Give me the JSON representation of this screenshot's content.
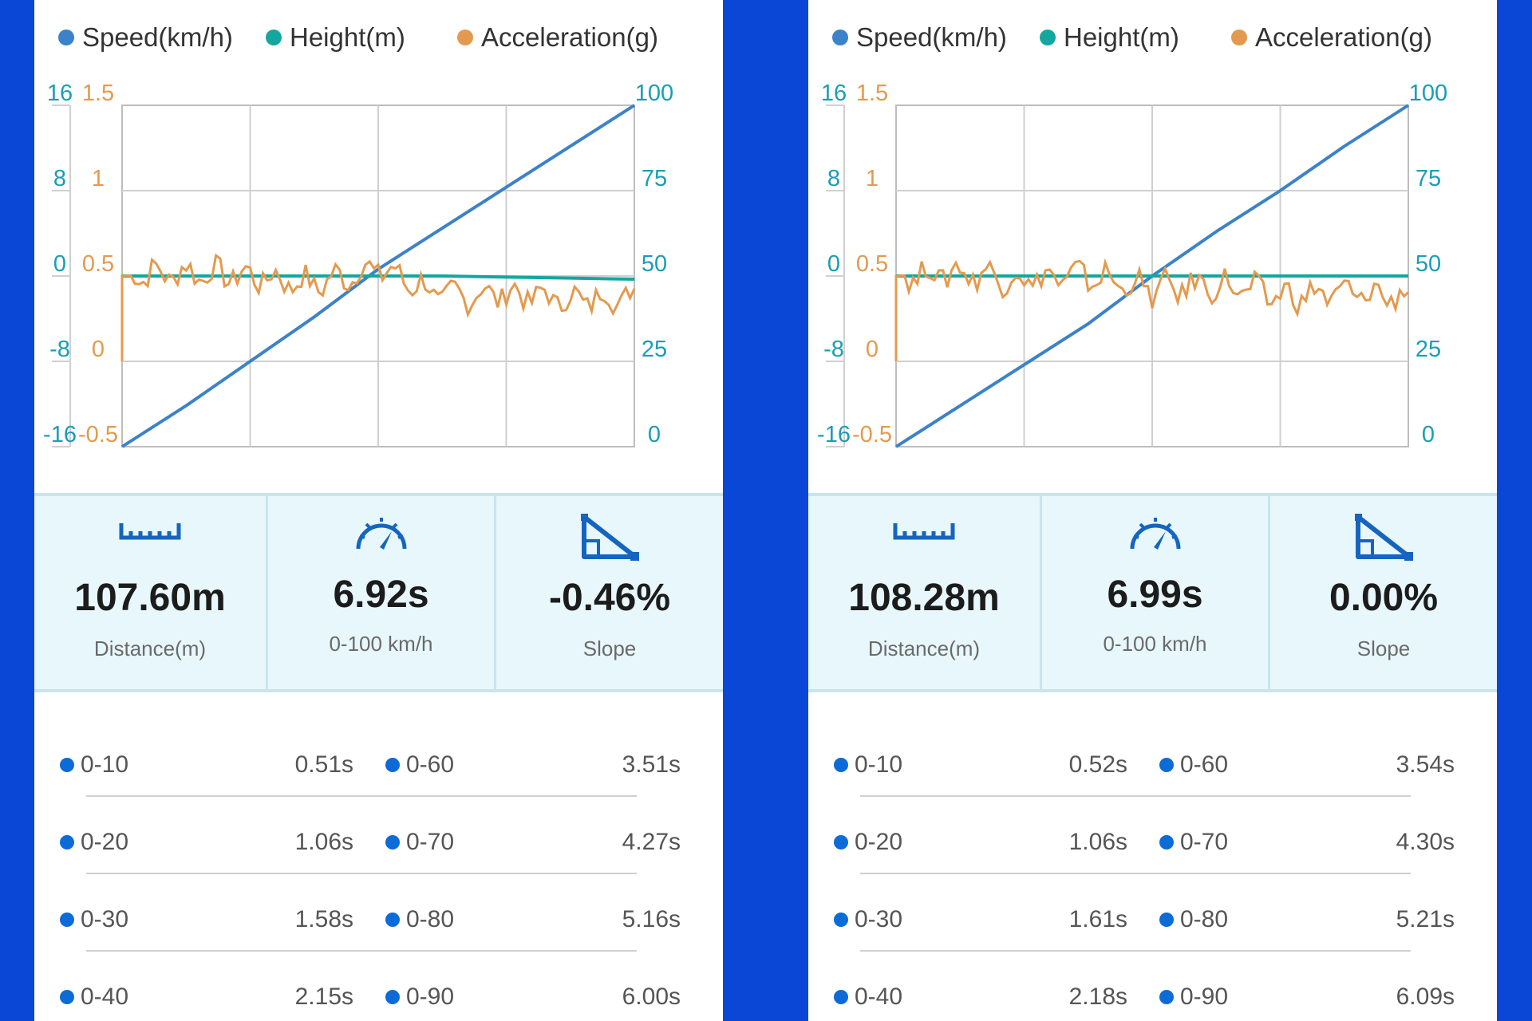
{
  "colors": {
    "speed": "#3c82c8",
    "height": "#14a7a0",
    "accel": "#e49a4e",
    "left_axis": "#1a9db5",
    "right_axis": "#1a9db5",
    "accent": "#0b47d6"
  },
  "panels": [
    {
      "legend": {
        "speed": "Speed(km/h)",
        "height": "Height(m)",
        "accel": "Acceleration(g)"
      },
      "axes": {
        "height_ticks": [
          "16",
          "8",
          "0",
          "-8",
          "-16"
        ],
        "accel_ticks": [
          "1.5",
          "1",
          "0.5",
          "0",
          "-0.5"
        ],
        "speed_ticks": [
          "100",
          "75",
          "50",
          "25",
          "0"
        ]
      },
      "stats": {
        "distance": {
          "value": "107.60m",
          "label": "Distance(m)",
          "icon": "ruler-icon"
        },
        "time": {
          "value": "6.92s",
          "label": "0-100 km/h",
          "icon": "speedometer-icon"
        },
        "slope": {
          "value": "-0.46%",
          "label": "Slope",
          "icon": "slope-icon"
        }
      },
      "times": [
        {
          "l_label": "0-10",
          "l_value": "0.51s",
          "r_label": "0-60",
          "r_value": "3.51s"
        },
        {
          "l_label": "0-20",
          "l_value": "1.06s",
          "r_label": "0-70",
          "r_value": "4.27s"
        },
        {
          "l_label": "0-30",
          "l_value": "1.58s",
          "r_label": "0-80",
          "r_value": "5.16s"
        },
        {
          "l_label": "0-40",
          "l_value": "2.15s",
          "r_label": "0-90",
          "r_value": "6.00s"
        }
      ]
    },
    {
      "legend": {
        "speed": "Speed(km/h)",
        "height": "Height(m)",
        "accel": "Acceleration(g)"
      },
      "axes": {
        "height_ticks": [
          "16",
          "8",
          "0",
          "-8",
          "-16"
        ],
        "accel_ticks": [
          "1.5",
          "1",
          "0.5",
          "0",
          "-0.5"
        ],
        "speed_ticks": [
          "100",
          "75",
          "50",
          "25",
          "0"
        ]
      },
      "stats": {
        "distance": {
          "value": "108.28m",
          "label": "Distance(m)",
          "icon": "ruler-icon"
        },
        "time": {
          "value": "6.99s",
          "label": "0-100 km/h",
          "icon": "speedometer-icon"
        },
        "slope": {
          "value": "0.00%",
          "label": "Slope",
          "icon": "slope-icon"
        }
      },
      "times": [
        {
          "l_label": "0-10",
          "l_value": "0.52s",
          "r_label": "0-60",
          "r_value": "3.54s"
        },
        {
          "l_label": "0-20",
          "l_value": "1.06s",
          "r_label": "0-70",
          "r_value": "4.30s"
        },
        {
          "l_label": "0-30",
          "l_value": "1.61s",
          "r_label": "0-80",
          "r_value": "5.21s"
        },
        {
          "l_label": "0-40",
          "l_value": "2.18s",
          "r_label": "0-90",
          "r_value": "6.09s"
        }
      ]
    }
  ],
  "chart_data": [
    {
      "type": "line",
      "x": [
        0,
        1,
        2,
        3,
        4,
        5,
        6,
        7,
        8
      ],
      "series": [
        {
          "name": "Speed(km/h)",
          "axis": "right",
          "values": [
            0,
            12,
            25,
            38,
            52,
            64,
            76,
            88,
            100
          ]
        },
        {
          "name": "Height(m)",
          "axis": "left",
          "values": [
            0,
            0,
            0,
            0,
            0,
            0,
            -0.1,
            -0.2,
            -0.3
          ]
        },
        {
          "name": "Acceleration(g)",
          "axis": "accel",
          "values": [
            0.5,
            0.52,
            0.5,
            0.45,
            0.55,
            0.38,
            0.4,
            0.36,
            0.38
          ]
        }
      ],
      "ylim_left": [
        -16,
        16
      ],
      "ylim_accel": [
        -0.5,
        1.5
      ],
      "ylim_right": [
        0,
        100
      ],
      "grid": true,
      "legend_position": "top"
    },
    {
      "type": "line",
      "x": [
        0,
        1,
        2,
        3,
        4,
        5,
        6,
        7,
        8
      ],
      "series": [
        {
          "name": "Speed(km/h)",
          "axis": "right",
          "values": [
            0,
            12,
            24,
            36,
            50,
            63,
            75,
            88,
            100
          ]
        },
        {
          "name": "Height(m)",
          "axis": "left",
          "values": [
            0,
            0,
            0,
            0,
            0,
            0,
            0,
            0,
            0
          ]
        },
        {
          "name": "Acceleration(g)",
          "axis": "accel",
          "values": [
            0.5,
            0.52,
            0.48,
            0.5,
            0.42,
            0.45,
            0.38,
            0.4,
            0.38
          ]
        }
      ],
      "ylim_left": [
        -16,
        16
      ],
      "ylim_accel": [
        -0.5,
        1.5
      ],
      "ylim_right": [
        0,
        100
      ],
      "grid": true,
      "legend_position": "top"
    }
  ]
}
